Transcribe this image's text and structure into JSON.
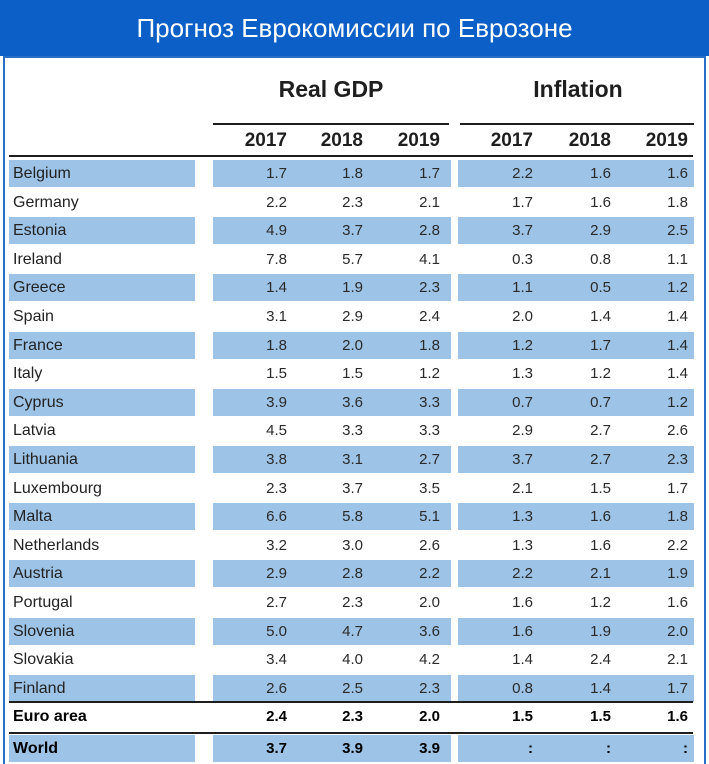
{
  "title": "Прогноз Еврокомиссии по Еврозоне",
  "groups": {
    "gdp": "Real GDP",
    "inflation": "Inflation"
  },
  "years": [
    "2017",
    "2018",
    "2019"
  ],
  "colors": {
    "banner": "#0b5fc6",
    "row_shade": "#9dc3e6"
  },
  "rows": [
    {
      "country": "Belgium",
      "gdp": [
        "1.7",
        "1.8",
        "1.7"
      ],
      "inf": [
        "2.2",
        "1.6",
        "1.6"
      ]
    },
    {
      "country": "Germany",
      "gdp": [
        "2.2",
        "2.3",
        "2.1"
      ],
      "inf": [
        "1.7",
        "1.6",
        "1.8"
      ]
    },
    {
      "country": "Estonia",
      "gdp": [
        "4.9",
        "3.7",
        "2.8"
      ],
      "inf": [
        "3.7",
        "2.9",
        "2.5"
      ]
    },
    {
      "country": "Ireland",
      "gdp": [
        "7.8",
        "5.7",
        "4.1"
      ],
      "inf": [
        "0.3",
        "0.8",
        "1.1"
      ]
    },
    {
      "country": "Greece",
      "gdp": [
        "1.4",
        "1.9",
        "2.3"
      ],
      "inf": [
        "1.1",
        "0.5",
        "1.2"
      ]
    },
    {
      "country": "Spain",
      "gdp": [
        "3.1",
        "2.9",
        "2.4"
      ],
      "inf": [
        "2.0",
        "1.4",
        "1.4"
      ]
    },
    {
      "country": "France",
      "gdp": [
        "1.8",
        "2.0",
        "1.8"
      ],
      "inf": [
        "1.2",
        "1.7",
        "1.4"
      ]
    },
    {
      "country": "Italy",
      "gdp": [
        "1.5",
        "1.5",
        "1.2"
      ],
      "inf": [
        "1.3",
        "1.2",
        "1.4"
      ]
    },
    {
      "country": "Cyprus",
      "gdp": [
        "3.9",
        "3.6",
        "3.3"
      ],
      "inf": [
        "0.7",
        "0.7",
        "1.2"
      ]
    },
    {
      "country": "Latvia",
      "gdp": [
        "4.5",
        "3.3",
        "3.3"
      ],
      "inf": [
        "2.9",
        "2.7",
        "2.6"
      ]
    },
    {
      "country": "Lithuania",
      "gdp": [
        "3.8",
        "3.1",
        "2.7"
      ],
      "inf": [
        "3.7",
        "2.7",
        "2.3"
      ]
    },
    {
      "country": "Luxembourg",
      "gdp": [
        "2.3",
        "3.7",
        "3.5"
      ],
      "inf": [
        "2.1",
        "1.5",
        "1.7"
      ]
    },
    {
      "country": "Malta",
      "gdp": [
        "6.6",
        "5.8",
        "5.1"
      ],
      "inf": [
        "1.3",
        "1.6",
        "1.8"
      ]
    },
    {
      "country": "Netherlands",
      "gdp": [
        "3.2",
        "3.0",
        "2.6"
      ],
      "inf": [
        "1.3",
        "1.6",
        "2.2"
      ]
    },
    {
      "country": "Austria",
      "gdp": [
        "2.9",
        "2.8",
        "2.2"
      ],
      "inf": [
        "2.2",
        "2.1",
        "1.9"
      ]
    },
    {
      "country": "Portugal",
      "gdp": [
        "2.7",
        "2.3",
        "2.0"
      ],
      "inf": [
        "1.6",
        "1.2",
        "1.6"
      ]
    },
    {
      "country": "Slovenia",
      "gdp": [
        "5.0",
        "4.7",
        "3.6"
      ],
      "inf": [
        "1.6",
        "1.9",
        "2.0"
      ]
    },
    {
      "country": "Slovakia",
      "gdp": [
        "3.4",
        "4.0",
        "4.2"
      ],
      "inf": [
        "1.4",
        "2.4",
        "2.1"
      ]
    },
    {
      "country": "Finland",
      "gdp": [
        "2.6",
        "2.5",
        "2.3"
      ],
      "inf": [
        "0.8",
        "1.4",
        "1.7"
      ]
    },
    {
      "country": "Euro area",
      "gdp": [
        "2.4",
        "2.3",
        "2.0"
      ],
      "inf": [
        "1.5",
        "1.5",
        "1.6"
      ],
      "bold": true
    },
    {
      "country": "World",
      "gdp": [
        "3.7",
        "3.9",
        "3.9"
      ],
      "inf": [
        ":",
        ":",
        ":"
      ],
      "bold": true
    }
  ]
}
